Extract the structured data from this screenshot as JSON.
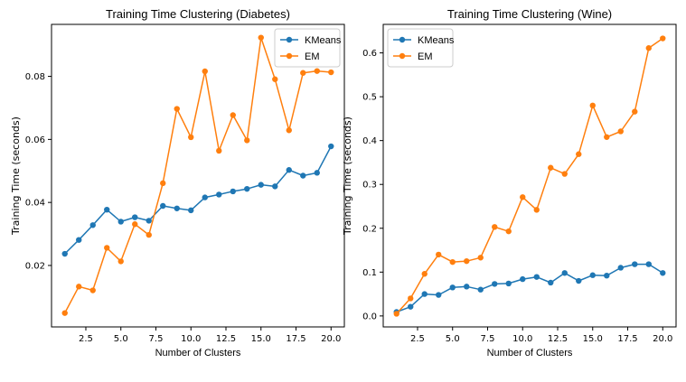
{
  "chart_data": [
    {
      "type": "line",
      "title": "Training Time Clustering (Diabetes)",
      "xlabel": "Number of Clusters",
      "ylabel": "Training Time (seconds)",
      "xlim": [
        0.05,
        20.95
      ],
      "ylim": [
        0.0005,
        0.0965
      ],
      "xticks": [
        2.5,
        5.0,
        7.5,
        10.0,
        12.5,
        15.0,
        17.5,
        20.0
      ],
      "xtick_labels": [
        "2.5",
        "5.0",
        "7.5",
        "10.0",
        "12.5",
        "15.0",
        "17.5",
        "20.0"
      ],
      "yticks": [
        0.02,
        0.04,
        0.06,
        0.08
      ],
      "ytick_labels": [
        "0.02",
        "0.04",
        "0.06",
        "0.08"
      ],
      "legend_position": "top-right",
      "x": [
        1,
        2,
        3,
        4,
        5,
        6,
        7,
        8,
        9,
        10,
        11,
        12,
        13,
        14,
        15,
        16,
        17,
        18,
        19,
        20
      ],
      "series": [
        {
          "name": "KMeans",
          "color": "#1f77b4",
          "values": [
            0.0237,
            0.0281,
            0.0328,
            0.0377,
            0.0339,
            0.0353,
            0.0342,
            0.0389,
            0.0381,
            0.0375,
            0.0416,
            0.0425,
            0.0435,
            0.0443,
            0.0456,
            0.0451,
            0.0503,
            0.0485,
            0.0494,
            0.0578
          ]
        },
        {
          "name": "EM",
          "color": "#ff7f0e",
          "values": [
            0.0049,
            0.0133,
            0.0121,
            0.0256,
            0.0213,
            0.0331,
            0.0297,
            0.0461,
            0.0697,
            0.0607,
            0.0816,
            0.0564,
            0.0677,
            0.0597,
            0.0923,
            0.0791,
            0.0629,
            0.0811,
            0.0817,
            0.0813
          ]
        }
      ]
    },
    {
      "type": "line",
      "title": "Training Time Clustering (Wine)",
      "xlabel": "Number of Clusters",
      "ylabel": "Training Time (seconds)",
      "xlim": [
        0.05,
        20.95
      ],
      "ylim": [
        -0.025,
        0.665
      ],
      "xticks": [
        2.5,
        5.0,
        7.5,
        10.0,
        12.5,
        15.0,
        17.5,
        20.0
      ],
      "xtick_labels": [
        "2.5",
        "5.0",
        "7.5",
        "10.0",
        "12.5",
        "15.0",
        "17.5",
        "20.0"
      ],
      "yticks": [
        0.0,
        0.1,
        0.2,
        0.3,
        0.4,
        0.5,
        0.6
      ],
      "ytick_labels": [
        "0.0",
        "0.1",
        "0.2",
        "0.3",
        "0.4",
        "0.5",
        "0.6"
      ],
      "legend_position": "top-left",
      "x": [
        1,
        2,
        3,
        4,
        5,
        6,
        7,
        8,
        9,
        10,
        11,
        12,
        13,
        14,
        15,
        16,
        17,
        18,
        19,
        20
      ],
      "series": [
        {
          "name": "KMeans",
          "color": "#1f77b4",
          "values": [
            0.009,
            0.021,
            0.05,
            0.048,
            0.065,
            0.067,
            0.06,
            0.073,
            0.074,
            0.084,
            0.089,
            0.076,
            0.098,
            0.08,
            0.093,
            0.092,
            0.11,
            0.118,
            0.118,
            0.098
          ]
        },
        {
          "name": "EM",
          "color": "#ff7f0e",
          "values": [
            0.005,
            0.04,
            0.096,
            0.14,
            0.123,
            0.125,
            0.133,
            0.203,
            0.193,
            0.271,
            0.242,
            0.338,
            0.324,
            0.369,
            0.48,
            0.408,
            0.421,
            0.466,
            0.611,
            0.633
          ]
        }
      ]
    }
  ]
}
